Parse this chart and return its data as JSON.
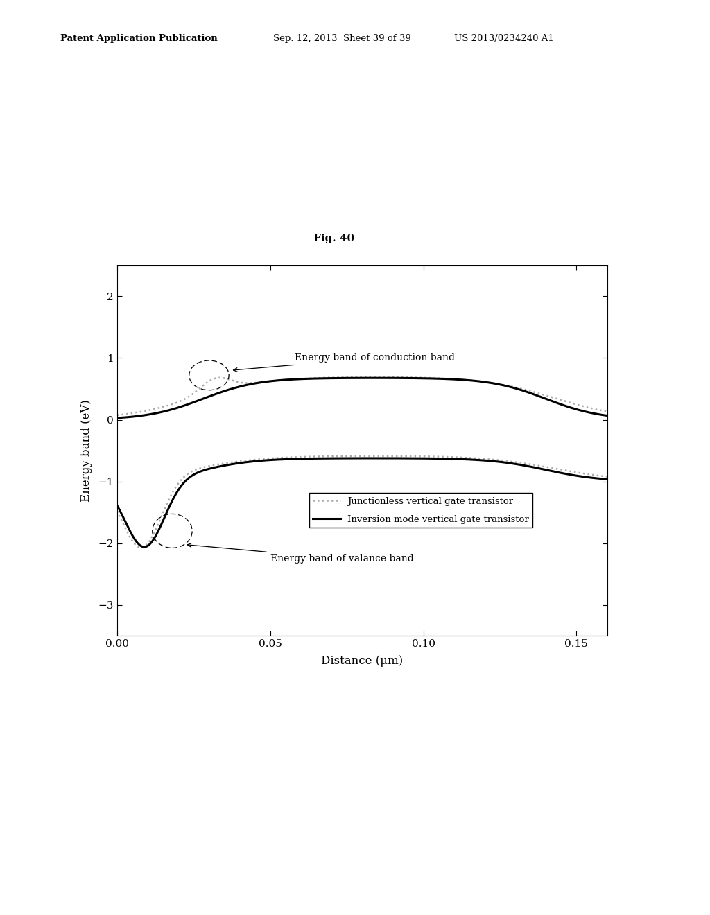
{
  "title": "Fig. 40",
  "xlabel": "Distance (μm)",
  "ylabel": "Energy band (eV)",
  "xlim": [
    0.0,
    0.16
  ],
  "ylim": [
    -3.5,
    2.5
  ],
  "yticks": [
    -3,
    -2,
    -1,
    0,
    1,
    2
  ],
  "xticks": [
    0.0,
    0.05,
    0.1,
    0.15
  ],
  "header_left": "Patent Application Publication",
  "header_mid": "Sep. 12, 2013  Sheet 39 of 39",
  "header_right": "US 2013/0234240 A1",
  "legend_label_jl": "Junctionless vertical gate transistor",
  "legend_label_inv": "Inversion mode vertical gate transistor",
  "annotation_conduction": "Energy band of conduction band",
  "annotation_valance": "Energy band of valance band",
  "background_color": "#ffffff",
  "fig_label": "Fig. 40"
}
